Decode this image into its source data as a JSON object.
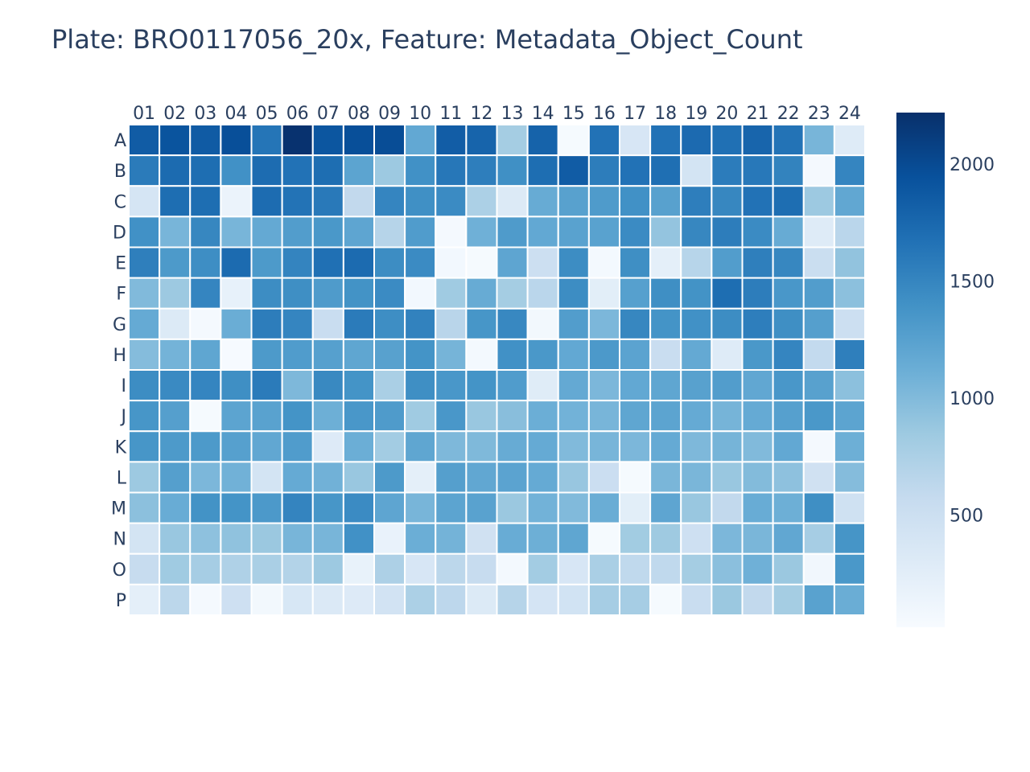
{
  "chart_data": {
    "type": "heatmap",
    "title": "Plate: BRO0117056_20x, Feature: Metadata_Object_Count",
    "x": [
      "01",
      "02",
      "03",
      "04",
      "05",
      "06",
      "07",
      "08",
      "09",
      "10",
      "11",
      "12",
      "13",
      "14",
      "15",
      "16",
      "17",
      "18",
      "19",
      "20",
      "21",
      "22",
      "23",
      "24"
    ],
    "y": [
      "A",
      "B",
      "C",
      "D",
      "E",
      "F",
      "G",
      "H",
      "I",
      "J",
      "K",
      "L",
      "M",
      "N",
      "O",
      "P"
    ],
    "z": [
      [
        1850,
        1920,
        1860,
        1960,
        1640,
        2200,
        1900,
        1960,
        1980,
        1180,
        1840,
        1780,
        800,
        1790,
        40,
        1660,
        380,
        1660,
        1730,
        1680,
        1770,
        1650,
        1050,
        300
      ],
      [
        1590,
        1720,
        1700,
        1400,
        1710,
        1660,
        1700,
        1220,
        850,
        1400,
        1620,
        1560,
        1410,
        1700,
        1850,
        1570,
        1660,
        1690,
        420,
        1580,
        1610,
        1520,
        50,
        1500
      ],
      [
        400,
        1700,
        1700,
        150,
        1710,
        1650,
        1600,
        600,
        1500,
        1410,
        1450,
        750,
        320,
        1150,
        1250,
        1310,
        1400,
        1250,
        1560,
        1490,
        1660,
        1700,
        850,
        1190
      ],
      [
        1400,
        1050,
        1490,
        1050,
        1170,
        1290,
        1340,
        1210,
        680,
        1300,
        50,
        1100,
        1310,
        1180,
        1240,
        1240,
        1450,
        900,
        1490,
        1570,
        1450,
        1150,
        300,
        650
      ],
      [
        1550,
        1320,
        1430,
        1720,
        1320,
        1510,
        1680,
        1720,
        1440,
        1450,
        70,
        40,
        1210,
        500,
        1440,
        60,
        1420,
        230,
        670,
        1290,
        1550,
        1490,
        520,
        910
      ],
      [
        1000,
        850,
        1500,
        200,
        1440,
        1420,
        1310,
        1390,
        1450,
        70,
        830,
        1150,
        800,
        650,
        1440,
        250,
        1260,
        1420,
        1390,
        1700,
        1570,
        1350,
        1290,
        940
      ],
      [
        1160,
        320,
        50,
        1130,
        1570,
        1500,
        530,
        1590,
        1430,
        1530,
        660,
        1360,
        1480,
        80,
        1290,
        1030,
        1490,
        1380,
        1400,
        1440,
        1560,
        1420,
        1270,
        500
      ],
      [
        980,
        1070,
        1200,
        30,
        1320,
        1300,
        1260,
        1200,
        1250,
        1380,
        1060,
        60,
        1400,
        1340,
        1180,
        1330,
        1230,
        530,
        1170,
        300,
        1340,
        1500,
        590,
        1550
      ],
      [
        1440,
        1460,
        1500,
        1420,
        1590,
        1020,
        1470,
        1380,
        760,
        1420,
        1350,
        1380,
        1300,
        280,
        1170,
        1030,
        1180,
        1200,
        1250,
        1290,
        1190,
        1350,
        1250,
        940
      ],
      [
        1360,
        1270,
        40,
        1220,
        1240,
        1380,
        1110,
        1350,
        1310,
        830,
        1350,
        870,
        960,
        1120,
        1080,
        1050,
        1200,
        1220,
        1160,
        1060,
        1160,
        1260,
        1340,
        1220
      ],
      [
        1360,
        1320,
        1320,
        1260,
        1190,
        1300,
        310,
        1120,
        810,
        1200,
        1020,
        1010,
        1150,
        1160,
        1000,
        1050,
        1030,
        1160,
        1020,
        1060,
        1000,
        1180,
        50,
        1110
      ],
      [
        850,
        1270,
        1030,
        1090,
        420,
        1160,
        1090,
        870,
        1320,
        230,
        1270,
        1190,
        1230,
        1160,
        880,
        510,
        40,
        1040,
        1040,
        870,
        990,
        930,
        460,
        980
      ],
      [
        940,
        1140,
        1390,
        1380,
        1330,
        1510,
        1360,
        1450,
        1210,
        1050,
        1220,
        1240,
        860,
        1080,
        1000,
        1130,
        250,
        1210,
        870,
        600,
        1140,
        1110,
        1420,
        470
      ],
      [
        420,
        870,
        930,
        920,
        860,
        1050,
        1050,
        1400,
        170,
        1120,
        1070,
        460,
        1140,
        1110,
        1200,
        40,
        820,
        840,
        480,
        1030,
        1040,
        1190,
        790,
        1370
      ],
      [
        560,
        830,
        790,
        730,
        760,
        700,
        850,
        180,
        740,
        380,
        640,
        560,
        60,
        810,
        380,
        760,
        610,
        610,
        800,
        950,
        1100,
        860,
        90,
        1340
      ],
      [
        230,
        640,
        50,
        480,
        80,
        370,
        330,
        310,
        430,
        750,
        630,
        320,
        680,
        410,
        440,
        790,
        790,
        40,
        530,
        860,
        600,
        800,
        1240,
        1130
      ]
    ],
    "colorbar": {
      "ticks": [
        500,
        1000,
        1500,
        2000
      ],
      "zmin": 20,
      "zmax": 2220
    },
    "colorscale": [
      "#f7fbff",
      "#deebf7",
      "#c6dbef",
      "#9ecae1",
      "#6baed6",
      "#4292c6",
      "#2171b5",
      "#08519c",
      "#08306b"
    ]
  }
}
